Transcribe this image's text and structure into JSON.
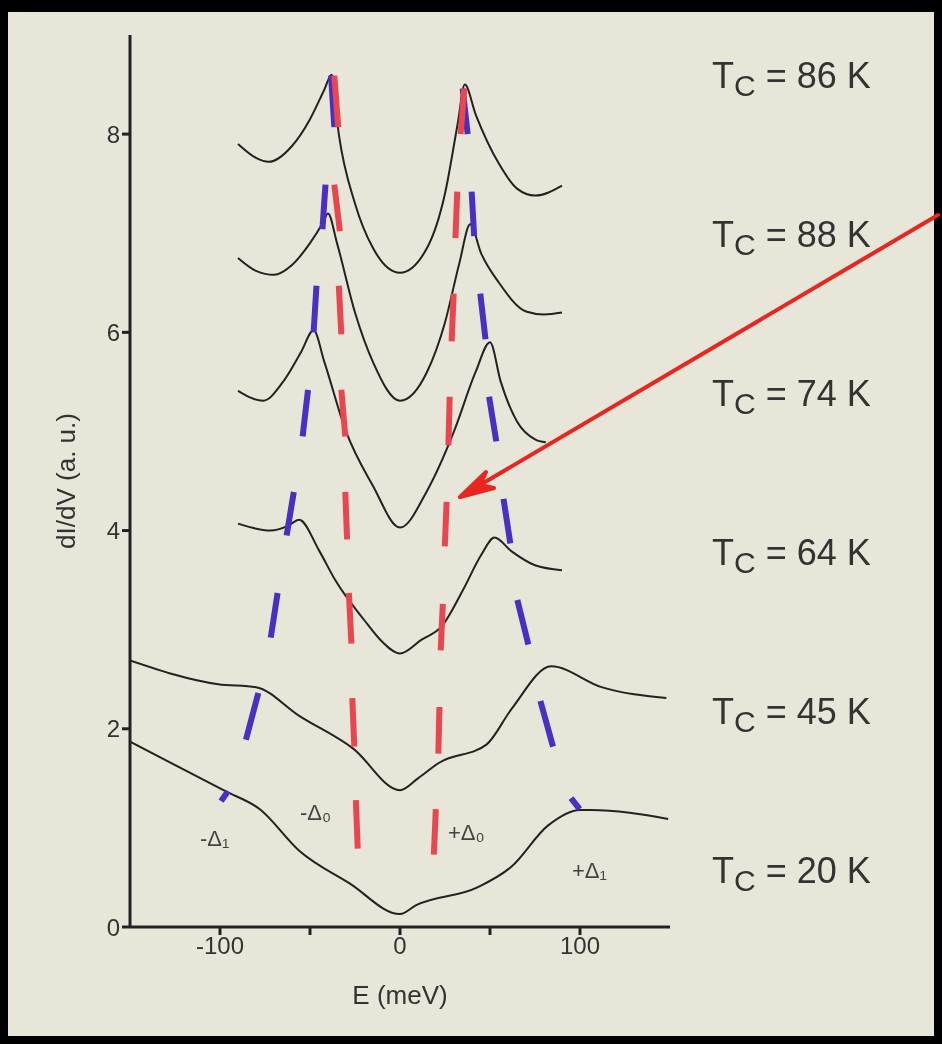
{
  "chart_data": {
    "type": "line",
    "xlabel": "E (meV)",
    "ylabel": "dI/dV (a. u.)",
    "xlim": [
      -150,
      150
    ],
    "ylim": [
      0,
      9
    ],
    "xticks": [
      -100,
      {
        "value": -50,
        "label": null
      },
      0,
      {
        "value": 50,
        "label": null
      },
      100
    ],
    "yticks": [
      0,
      2,
      4,
      6,
      8
    ],
    "grid": false,
    "legend": false,
    "marker": "none",
    "series": [
      {
        "name": "T$_{C}$ = 86 K",
        "color": "#222222",
        "x": [
          -90,
          -80,
          -73,
          -60,
          -50,
          -42,
          -38,
          -34,
          -25,
          -15,
          0,
          15,
          25,
          32,
          36,
          42,
          55,
          65,
          75,
          90
        ],
        "values": [
          7.9,
          7.76,
          7.72,
          7.88,
          8.15,
          8.45,
          8.6,
          8.0,
          7.3,
          6.85,
          6.6,
          6.85,
          7.4,
          8.1,
          8.5,
          8.2,
          7.7,
          7.45,
          7.38,
          7.48
        ]
      },
      {
        "name": "T$_{C}$ = 88 K",
        "color": "#222222",
        "x": [
          -90,
          -80,
          -70,
          -60,
          -50,
          -43,
          -40,
          -35,
          -25,
          -15,
          0,
          15,
          25,
          33,
          39,
          45,
          55,
          70,
          80,
          90
        ],
        "values": [
          6.75,
          6.62,
          6.58,
          6.68,
          6.9,
          7.1,
          7.2,
          6.9,
          6.2,
          5.7,
          5.31,
          5.6,
          6.1,
          6.7,
          7.09,
          6.8,
          6.5,
          6.21,
          6.18,
          6.2
        ]
      },
      {
        "name": "T$_{C}$ = 74 K",
        "color": "#222222",
        "x": [
          -90,
          -76,
          -65,
          -55,
          -48,
          -42,
          -30,
          -15,
          0,
          15,
          30,
          42,
          50,
          56,
          65,
          75,
          81
        ],
        "values": [
          5.41,
          5.31,
          5.5,
          5.8,
          6.02,
          5.7,
          5.0,
          4.45,
          4.03,
          4.4,
          5.0,
          5.6,
          5.9,
          5.5,
          5.1,
          4.92,
          4.89
        ]
      },
      {
        "name": "T$_{C}$ = 64 K",
        "color": "#222222",
        "x": [
          -90,
          -72,
          -62,
          -56,
          -45,
          -36,
          -20,
          -10,
          0,
          12,
          23,
          35,
          45,
          52.5,
          62,
          75,
          90
        ],
        "values": [
          4.07,
          4.0,
          4.05,
          4.11,
          3.8,
          3.5,
          3.1,
          2.88,
          2.76,
          2.9,
          3.03,
          3.4,
          3.75,
          3.93,
          3.79,
          3.65,
          3.6
        ]
      },
      {
        "name": "T$_{C}$ = 45 K",
        "color": "#222222",
        "x": [
          -150,
          -101,
          -80,
          -56,
          -26,
          0,
          10,
          22,
          48,
          62,
          84,
          112,
          148
        ],
        "values": [
          2.69,
          2.45,
          2.42,
          2.13,
          1.8,
          1.38,
          1.5,
          1.66,
          1.84,
          2.2,
          2.63,
          2.42,
          2.31
        ]
      },
      {
        "name": "T$_{C}$ = 20 K",
        "color": "#222222",
        "x": [
          -150,
          -97,
          -78,
          -56,
          -28,
          0,
          9,
          43,
          62,
          82,
          100,
          106,
          149
        ],
        "values": [
          1.87,
          1.37,
          1.19,
          0.77,
          0.44,
          0.13,
          0.22,
          0.4,
          0.61,
          1.02,
          1.18,
          1.18,
          1.09
        ]
      },
      {
        "color": "#4b2fc0",
        "x": [
          -38.3,
          -36.5,
          null,
          -41.4,
          -43.1,
          null,
          -46.4,
          -48,
          null,
          -51.1,
          -54.1,
          null,
          -59,
          -63,
          null,
          -68,
          -71.8,
          null,
          -78.7,
          -85.6,
          null,
          -95.6,
          -99.4,
          null,
          34.8,
          37.6,
          null,
          39.8,
          41.2,
          null,
          44.6,
          47.5,
          null,
          49.5,
          53.5,
          null,
          57.5,
          61.3,
          null,
          65.2,
          71.3,
          null,
          78,
          85,
          null,
          95,
          99.8
        ],
        "values": [
          8.59,
          8.07,
          null,
          7.49,
          7.04,
          null,
          6.47,
          6.0,
          null,
          5.42,
          4.95,
          null,
          4.39,
          3.95,
          null,
          3.37,
          2.92,
          null,
          2.36,
          1.89,
          null,
          1.37,
          1.27,
          null,
          8.46,
          8.0,
          null,
          7.42,
          6.97,
          null,
          6.39,
          5.93,
          null,
          5.35,
          4.9,
          null,
          4.32,
          3.87,
          null,
          3.3,
          2.85,
          null,
          2.28,
          1.82,
          null,
          1.3,
          1.19
        ]
      },
      {
        "color": "#e8474f",
        "x": [
          -36.5,
          -34.3,
          null,
          -36.5,
          -33.4,
          null,
          -34,
          -32.6,
          null,
          -32.6,
          -30.4,
          null,
          -30.4,
          -29.4,
          null,
          -28.4,
          -27,
          null,
          -26.5,
          -25.4,
          null,
          -24.5,
          -23.5,
          null,
          35.7,
          33.7,
          null,
          31.8,
          30.8,
          null,
          29.8,
          28.7,
          null,
          27.6,
          26.9,
          null,
          25.9,
          24.9,
          null,
          23.8,
          22.6,
          null,
          21.9,
          21.3,
          null,
          19.9,
          18.8
        ],
        "values": [
          8.59,
          8.07,
          null,
          7.49,
          7.02,
          null,
          6.47,
          5.98,
          null,
          5.42,
          4.95,
          null,
          4.39,
          3.91,
          null,
          3.37,
          2.86,
          null,
          2.31,
          1.82,
          null,
          1.28,
          0.79,
          null,
          8.46,
          8.0,
          null,
          7.42,
          6.95,
          null,
          6.39,
          5.91,
          null,
          5.35,
          4.86,
          null,
          4.29,
          3.84,
          null,
          3.26,
          2.79,
          null,
          2.22,
          1.75,
          null,
          1.19,
          0.73
        ]
      }
    ],
    "annotations": [
      "-Δ₁",
      "-Δ₀",
      "+Δ₀",
      "+Δ₁"
    ]
  }
}
